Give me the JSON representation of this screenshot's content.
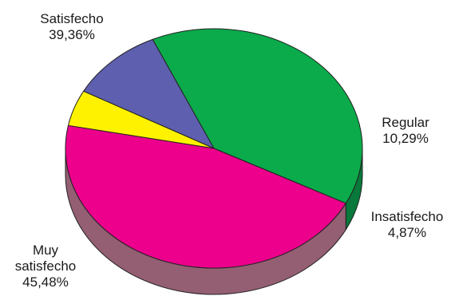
{
  "chart_data": {
    "type": "pie",
    "style": "3d",
    "title": "",
    "slices": [
      {
        "label": "Satisfecho",
        "value": 39.36,
        "value_label": "39,36%",
        "color": "#0BAA4A",
        "side_color": "#08793A"
      },
      {
        "label": "Regular",
        "value": 10.29,
        "value_label": "10,29%",
        "color": "#5E5FAE",
        "side_color": "#3E3F7E"
      },
      {
        "label": "Insatisfecho",
        "value": 4.87,
        "value_label": "4,87%",
        "color": "#FFF200",
        "side_color": "#A8A14E"
      },
      {
        "label": "Muy satisfecho",
        "value": 45.48,
        "value_label": "45,48%",
        "color": "#EC008C",
        "side_color": "#945E73"
      }
    ]
  }
}
